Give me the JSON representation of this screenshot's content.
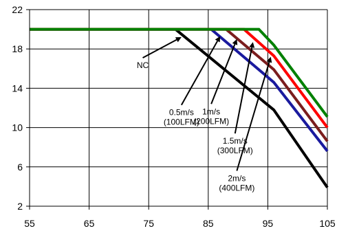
{
  "chart_data": {
    "type": "line",
    "title": "",
    "xlabel": "",
    "ylabel": "",
    "xlim": [
      55,
      105
    ],
    "ylim": [
      2,
      22
    ],
    "x_ticks": [
      55,
      65,
      75,
      85,
      95,
      105
    ],
    "y_ticks": [
      2,
      6,
      10,
      14,
      18,
      22
    ],
    "grid": "both",
    "series": [
      {
        "key": "nc",
        "color": "#000000",
        "points": [
          [
            55,
            20
          ],
          [
            79.5,
            20
          ],
          [
            96,
            11.8
          ],
          [
            105,
            3.9
          ]
        ]
      },
      {
        "key": "s05",
        "color": "#1a1a9e",
        "points": [
          [
            55,
            20
          ],
          [
            85.5,
            20
          ],
          [
            96,
            14.6
          ],
          [
            105,
            7.6
          ]
        ]
      },
      {
        "key": "s1",
        "color": "#7b1d1d",
        "points": [
          [
            55,
            20
          ],
          [
            88,
            20
          ],
          [
            96,
            15.9
          ],
          [
            105,
            8.6
          ]
        ]
      },
      {
        "key": "s15",
        "color": "#ff0000",
        "points": [
          [
            55,
            20
          ],
          [
            91,
            20
          ],
          [
            96,
            17.3
          ],
          [
            105,
            10.0
          ]
        ]
      },
      {
        "key": "s2",
        "color": "#008000",
        "points": [
          [
            55,
            20
          ],
          [
            93.5,
            20
          ],
          [
            96,
            18.4
          ],
          [
            105,
            11.1
          ]
        ]
      }
    ],
    "annotations": [
      {
        "id": "nc",
        "lines": [
          "NC"
        ],
        "arrow_from": [
          74,
          17.1
        ],
        "arrow_to": [
          80.5,
          19.2
        ]
      },
      {
        "id": "s05",
        "lines": [
          "0.5m/s",
          "(100LFM)"
        ],
        "arrow_from": [
          80.5,
          12.3
        ],
        "arrow_to": [
          87,
          19.3
        ]
      },
      {
        "id": "s1",
        "lines": [
          "1m/s",
          "(200LFM)"
        ],
        "arrow_from": [
          85.5,
          12.4
        ],
        "arrow_to": [
          89.8,
          19.0
        ]
      },
      {
        "id": "s15",
        "lines": [
          "1.5m/s",
          "(300LFM)"
        ],
        "arrow_from": [
          89.5,
          9.4
        ],
        "arrow_to": [
          92.5,
          18.7
        ]
      },
      {
        "id": "s2",
        "lines": [
          "2m/s",
          "(400LFM)"
        ],
        "arrow_from": [
          89.8,
          5.6
        ],
        "arrow_to": [
          95.5,
          17.2
        ]
      }
    ]
  }
}
